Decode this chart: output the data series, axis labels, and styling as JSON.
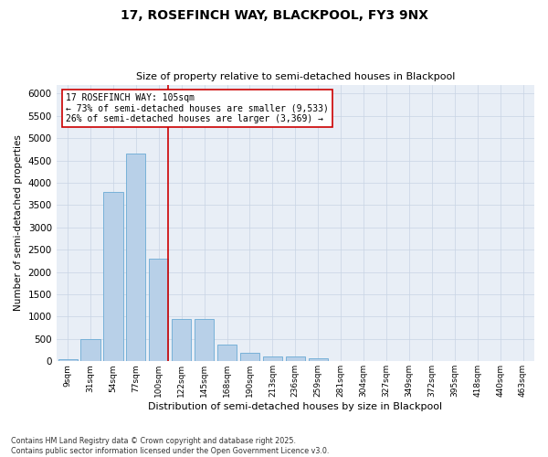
{
  "title_line1": "17, ROSEFINCH WAY, BLACKPOOL, FY3 9NX",
  "title_line2": "Size of property relative to semi-detached houses in Blackpool",
  "xlabel": "Distribution of semi-detached houses by size in Blackpool",
  "ylabel": "Number of semi-detached properties",
  "categories": [
    "9sqm",
    "31sqm",
    "54sqm",
    "77sqm",
    "100sqm",
    "122sqm",
    "145sqm",
    "168sqm",
    "190sqm",
    "213sqm",
    "236sqm",
    "259sqm",
    "281sqm",
    "304sqm",
    "327sqm",
    "349sqm",
    "372sqm",
    "395sqm",
    "418sqm",
    "440sqm",
    "463sqm"
  ],
  "values": [
    50,
    500,
    3800,
    4650,
    2300,
    950,
    950,
    380,
    190,
    100,
    100,
    70,
    0,
    0,
    0,
    0,
    0,
    0,
    0,
    0,
    0
  ],
  "bar_color": "#b8d0e8",
  "bar_edge_color": "#6aaad4",
  "vline_x": 4.42,
  "vline_color": "#cc0000",
  "annotation_text": "17 ROSEFINCH WAY: 105sqm\n← 73% of semi-detached houses are smaller (9,533)\n26% of semi-detached houses are larger (3,369) →",
  "annotation_box_color": "#ffffff",
  "annotation_box_edge": "#cc0000",
  "ylim": [
    0,
    6200
  ],
  "yticks": [
    0,
    500,
    1000,
    1500,
    2000,
    2500,
    3000,
    3500,
    4000,
    4500,
    5000,
    5500,
    6000
  ],
  "footnote": "Contains HM Land Registry data © Crown copyright and database right 2025.\nContains public sector information licensed under the Open Government Licence v3.0.",
  "grid_color": "#c8d4e4",
  "background_color": "#e8eef6"
}
